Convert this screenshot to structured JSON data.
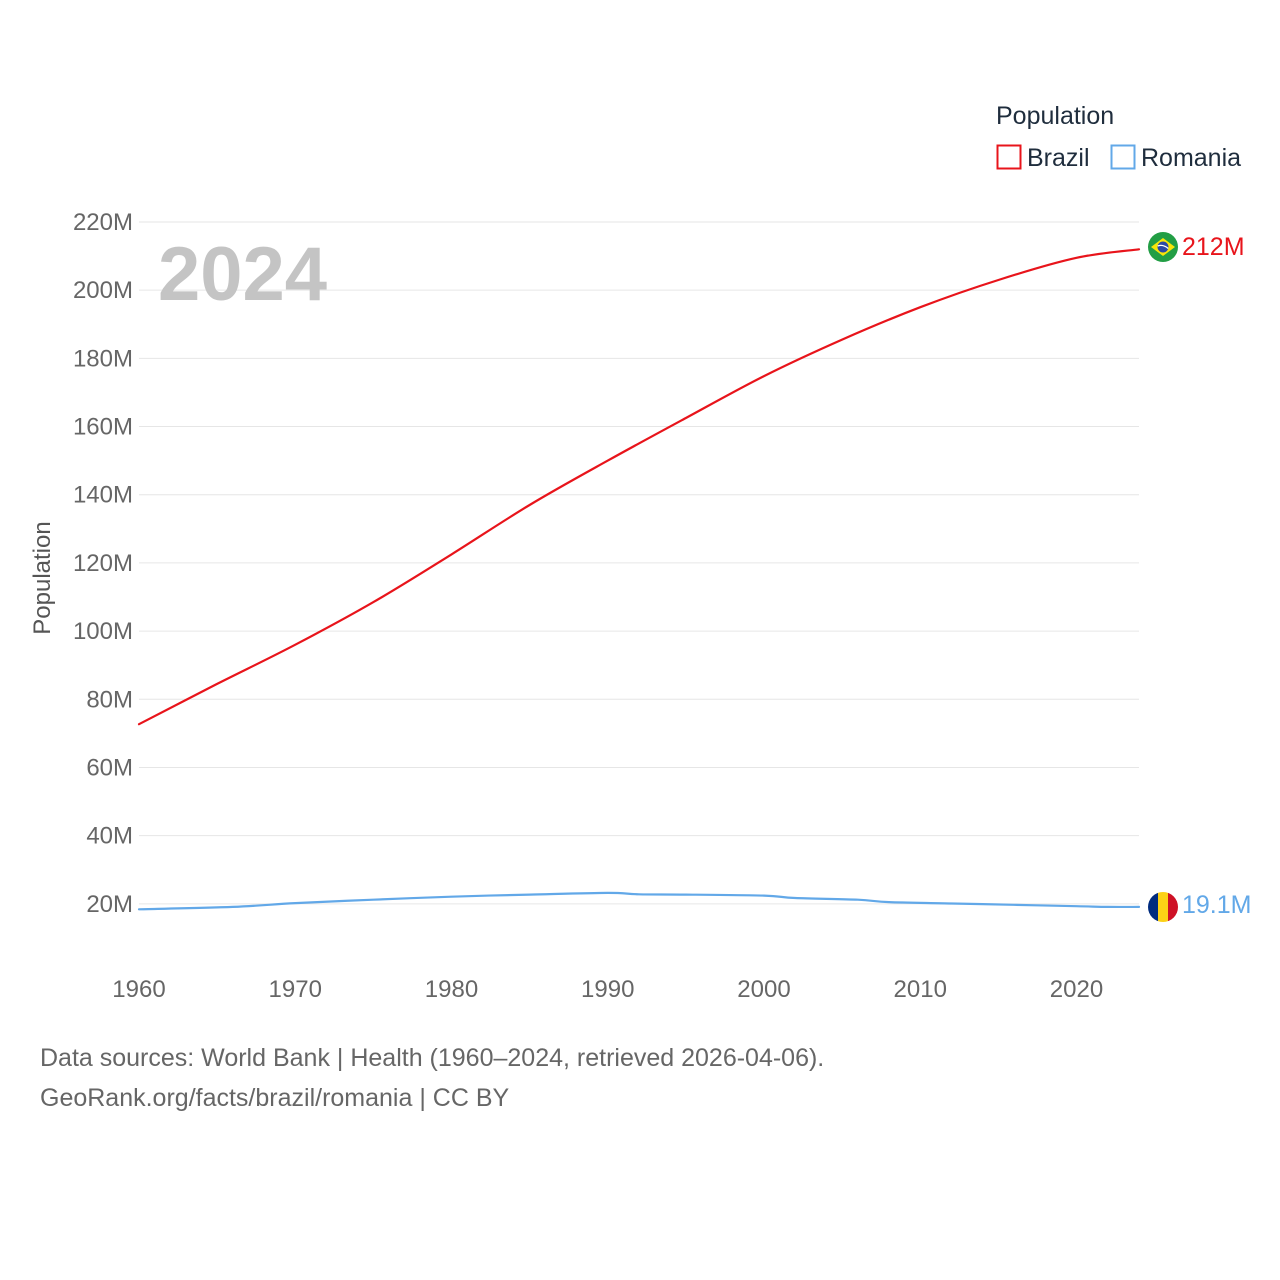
{
  "chart_data": {
    "type": "line",
    "year_label": "2024",
    "ylabel": "Population",
    "xlim": [
      1960,
      2024
    ],
    "ylim": [
      0,
      220000000
    ],
    "x_ticks": [
      1960,
      1970,
      1980,
      1990,
      2000,
      2010,
      2020
    ],
    "y_ticks": [
      {
        "value": 20000000,
        "label": "20M"
      },
      {
        "value": 40000000,
        "label": "40M"
      },
      {
        "value": 60000000,
        "label": "60M"
      },
      {
        "value": 80000000,
        "label": "80M"
      },
      {
        "value": 100000000,
        "label": "100M"
      },
      {
        "value": 120000000,
        "label": "120M"
      },
      {
        "value": 140000000,
        "label": "140M"
      },
      {
        "value": 160000000,
        "label": "160M"
      },
      {
        "value": 180000000,
        "label": "180M"
      },
      {
        "value": 200000000,
        "label": "200M"
      },
      {
        "value": 220000000,
        "label": "220M"
      }
    ],
    "legend": {
      "title": "Population",
      "position": "top-right",
      "items": [
        {
          "name": "Brazil",
          "color": "#e8141b"
        },
        {
          "name": "Romania",
          "color": "#62a8e8"
        }
      ]
    },
    "series": [
      {
        "name": "Brazil",
        "color": "#e8141b",
        "end_label": "212M",
        "flag_icon": "brazil-flag-icon",
        "x": [
          1960,
          1965,
          1970,
          1975,
          1980,
          1985,
          1990,
          1995,
          2000,
          2005,
          2010,
          2015,
          2020,
          2024
        ],
        "values": [
          72700000,
          84500000,
          96000000,
          108500000,
          122500000,
          137000000,
          150000000,
          162500000,
          174800000,
          185500000,
          195000000,
          203000000,
          209500000,
          212000000
        ]
      },
      {
        "name": "Romania",
        "color": "#62a8e8",
        "end_label": "19.1M",
        "flag_icon": "romania-flag-icon",
        "x": [
          1960,
          1966,
          1970,
          1975,
          1980,
          1985,
          1990,
          1992,
          1995,
          2000,
          2002,
          2006,
          2008,
          2012,
          2016,
          2020,
          2022,
          2024
        ],
        "values": [
          18400000,
          19100000,
          20200000,
          21200000,
          22100000,
          22700000,
          23200000,
          22800000,
          22700000,
          22400000,
          21700000,
          21200000,
          20500000,
          20100000,
          19700000,
          19300000,
          19100000,
          19100000
        ]
      }
    ]
  },
  "footer": {
    "line1": "Data sources: World Bank | Health (1960–2024, retrieved 2026-04-06).",
    "line2": "GeoRank.org/facts/brazil/romania | CC BY"
  }
}
